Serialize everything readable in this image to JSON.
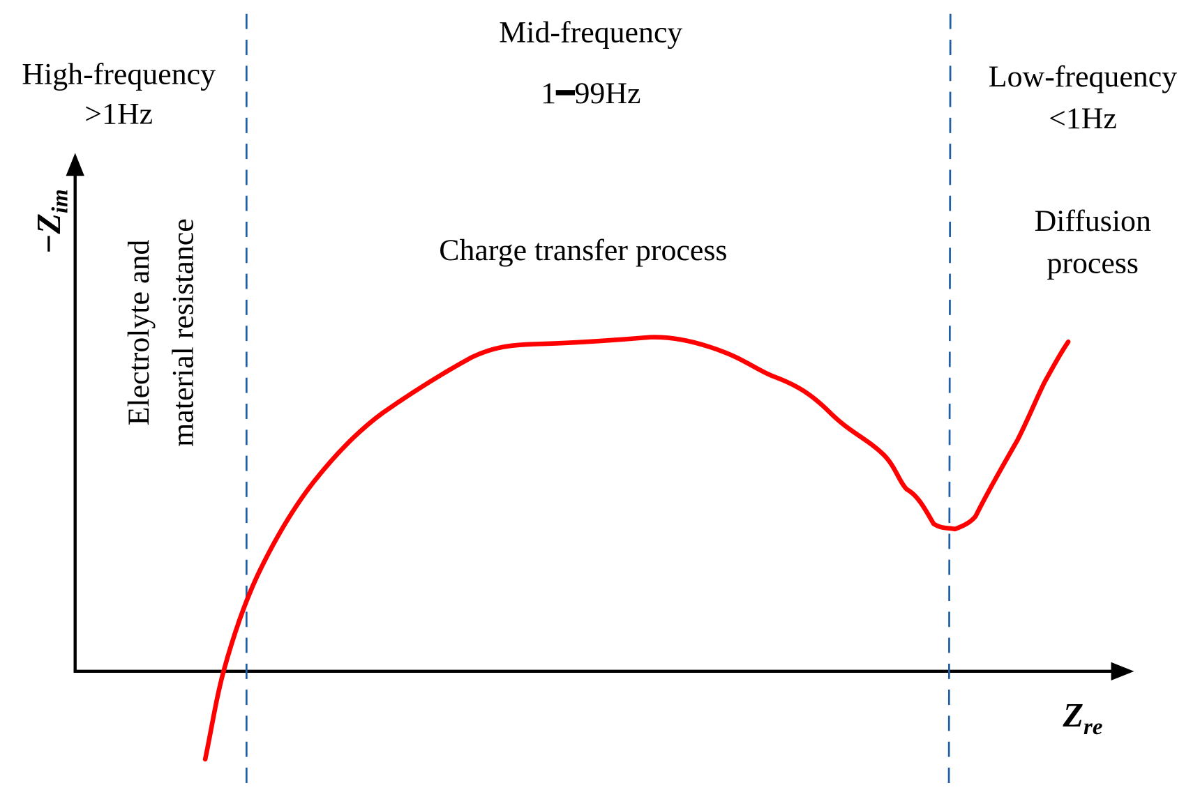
{
  "regions": [
    {
      "label": "High-frequency",
      "range": ">1Hz"
    },
    {
      "label": "Mid-frequency",
      "range": "1━99Hz"
    },
    {
      "label": "Low-frequency",
      "range": "<1Hz"
    }
  ],
  "processes": [
    {
      "lines": [
        "Electrolyte and",
        "material resistance"
      ]
    },
    {
      "lines": [
        "Charge transfer process"
      ]
    },
    {
      "lines": [
        "Diffusion",
        "process"
      ]
    }
  ],
  "axes": {
    "y": {
      "symbol": "−Z",
      "subscript": "im"
    },
    "x": {
      "symbol": "Z",
      "subscript": "re"
    }
  }
}
